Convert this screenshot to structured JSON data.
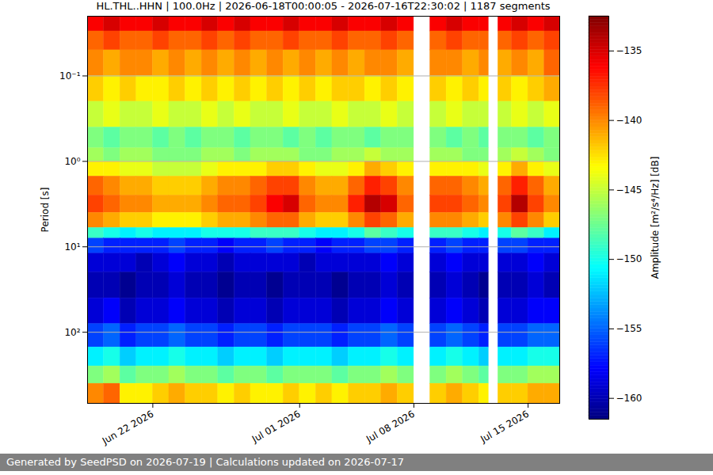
{
  "chart_data": {
    "type": "heatmap",
    "title": "HL.THL..HHN | 100.0Hz | 2026-06-18T00:00:05 - 2026-07-16T22:30:02 | 1187 segments",
    "caption": "Generated by SeedPSD on 2026-07-19 | Calculations updated on 2026-07-17",
    "xlabel": null,
    "ylabel": "Period [s]",
    "log": "y",
    "grid": true,
    "xlim": [
      "2026-06-18T00:00:05",
      "2026-07-16T22:30:02"
    ],
    "xticks": [
      {
        "value": "2026-06-22T00:00:00",
        "label": "Jun 22 2026"
      },
      {
        "value": "2026-07-01T00:00:00",
        "label": "Jul 01 2026"
      },
      {
        "value": "2026-07-08T00:00:00",
        "label": "Jul 08 2026"
      },
      {
        "value": "2026-07-15T00:00:00",
        "label": "Jul 15 2026"
      }
    ],
    "ylim": [
      0.02,
      680
    ],
    "yticks": [
      {
        "value": 0.1,
        "label": "10⁻¹"
      },
      {
        "value": 1,
        "label": "10⁰"
      },
      {
        "value": 10,
        "label": "10¹"
      },
      {
        "value": 100,
        "label": "10²"
      }
    ],
    "colorbar": {
      "label": "Amplitude [m²/s⁴/Hz] [dB]",
      "lim": [
        -161.5,
        -132.5
      ],
      "ticks": [
        {
          "value": -160,
          "label": "−160"
        },
        {
          "value": -155,
          "label": "−155"
        },
        {
          "value": -150,
          "label": "−150"
        },
        {
          "value": -145,
          "label": "−145"
        },
        {
          "value": -140,
          "label": "−140"
        },
        {
          "value": -135,
          "label": "−135"
        }
      ]
    },
    "x_edges": [
      "2026-06-18T00:00:05",
      "2026-06-19T00:00:00",
      "2026-06-20T00:00:00",
      "2026-06-21T00:00:00",
      "2026-06-22T00:00:00",
      "2026-06-23T00:00:00",
      "2026-06-24T00:00:00",
      "2026-06-25T00:00:00",
      "2026-06-26T00:00:00",
      "2026-06-27T00:00:00",
      "2026-06-28T00:00:00",
      "2026-06-29T00:00:00",
      "2026-06-30T00:00:00",
      "2026-07-01T00:00:00",
      "2026-07-02T00:00:00",
      "2026-07-03T00:00:00",
      "2026-07-04T00:00:00",
      "2026-07-05T00:00:00",
      "2026-07-06T00:00:00",
      "2026-07-07T00:00:00",
      "2026-07-08T00:00:00",
      "2026-07-09T00:00:00",
      "2026-07-10T00:00:00",
      "2026-07-11T00:00:00",
      "2026-07-12T00:00:00",
      "2026-07-12T14:00:00",
      "2026-07-13T04:00:00",
      "2026-07-14T00:00:00",
      "2026-07-15T00:00:00",
      "2026-07-16T00:00:00",
      "2026-07-16T22:30:02"
    ],
    "y_edges": [
      0.02,
      0.03,
      0.05,
      0.1,
      0.2,
      0.4,
      0.7,
      1,
      1.5,
      2.5,
      4,
      6,
      8,
      12,
      20,
      40,
      80,
      150,
      250,
      400,
      680
    ],
    "values": [
      [
        -136,
        -135,
        -136,
        -136,
        -135,
        -136,
        -136,
        -135,
        -136,
        -135,
        -136,
        -136,
        -135,
        -136,
        -136,
        -135,
        -136,
        -136,
        -135,
        -136,
        null,
        -136,
        -135,
        -136,
        -136,
        null,
        -136,
        -135,
        -136,
        -135
      ],
      [
        -139,
        -138,
        -139,
        -139,
        -138,
        -139,
        -139,
        -138,
        -139,
        -138,
        -139,
        -139,
        -138,
        -139,
        -139,
        -138,
        -139,
        -139,
        -138,
        -139,
        null,
        -139,
        -138,
        -139,
        -139,
        null,
        -139,
        -138,
        -139,
        -138
      ],
      [
        -140,
        -141,
        -140,
        -140,
        -141,
        -140,
        -141,
        -140,
        -141,
        -140,
        -141,
        -140,
        -141,
        -140,
        -141,
        -140,
        -141,
        -140,
        -140,
        -141,
        null,
        -140,
        -140,
        -141,
        -140,
        null,
        -141,
        -140,
        -141,
        -139
      ],
      [
        -142,
        -143,
        -142,
        -143,
        -143,
        -142,
        -143,
        -142,
        -143,
        -142,
        -143,
        -142,
        -143,
        -142,
        -143,
        -142,
        -142,
        -143,
        -142,
        -143,
        null,
        -142,
        -143,
        -142,
        -143,
        null,
        -142,
        -143,
        -142,
        -141
      ],
      [
        -145,
        -144,
        -145,
        -145,
        -144,
        -145,
        -145,
        -144,
        -145,
        -144,
        -145,
        -145,
        -144,
        -145,
        -145,
        -144,
        -145,
        -145,
        -144,
        -145,
        null,
        -145,
        -144,
        -145,
        -145,
        null,
        -145,
        -144,
        -145,
        -144
      ],
      [
        -147,
        -148,
        -147,
        -147,
        -148,
        -147,
        -148,
        -147,
        -147,
        -148,
        -147,
        -147,
        -148,
        -147,
        -148,
        -147,
        -147,
        -148,
        -147,
        -147,
        null,
        -147,
        -148,
        -147,
        -148,
        null,
        -147,
        -147,
        -148,
        -147
      ],
      [
        -146,
        -147,
        -146,
        -146,
        -147,
        -147,
        -147,
        -146,
        -146,
        -147,
        -146,
        -146,
        -146,
        -147,
        -147,
        -146,
        -146,
        -145,
        -146,
        -146,
        null,
        -146,
        -146,
        -147,
        -147,
        null,
        -146,
        -145,
        -146,
        -147
      ],
      [
        -143,
        -143,
        -144,
        -144,
        -145,
        -145,
        -145,
        -144,
        -143,
        -143,
        -143,
        -142,
        -142,
        -143,
        -144,
        -144,
        -143,
        -141,
        -142,
        -143,
        null,
        -143,
        -143,
        -143,
        -144,
        null,
        -143,
        -141,
        -143,
        -144
      ],
      [
        -139,
        -140,
        -141,
        -141,
        -142,
        -142,
        -142,
        -141,
        -140,
        -140,
        -139,
        -138,
        -138,
        -140,
        -141,
        -141,
        -139,
        -137,
        -138,
        -140,
        null,
        -139,
        -139,
        -140,
        -141,
        null,
        -139,
        -137,
        -139,
        -141
      ],
      [
        -138,
        -139,
        -140,
        -140,
        -141,
        -141,
        -141,
        -140,
        -139,
        -139,
        -138,
        -136,
        -135,
        -139,
        -140,
        -140,
        -137,
        -134,
        -135,
        -139,
        null,
        -138,
        -138,
        -139,
        -140,
        null,
        -138,
        -134,
        -138,
        -140
      ],
      [
        -140,
        -141,
        -142,
        -142,
        -143,
        -143,
        -143,
        -142,
        -141,
        -141,
        -140,
        -139,
        -139,
        -141,
        -142,
        -142,
        -140,
        -138,
        -139,
        -141,
        null,
        -140,
        -140,
        -141,
        -142,
        null,
        -140,
        -138,
        -140,
        -142
      ],
      [
        -149,
        -150,
        -151,
        -150,
        -151,
        -151,
        -151,
        -150,
        -150,
        -150,
        -149,
        -149,
        -149,
        -150,
        -151,
        -151,
        -150,
        -148,
        -149,
        -150,
        null,
        -149,
        -149,
        -150,
        -151,
        null,
        -150,
        -148,
        -149,
        -151
      ],
      [
        -156,
        -157,
        -157,
        -157,
        -157,
        -156,
        -157,
        -157,
        -158,
        -157,
        -157,
        -156,
        -157,
        -157,
        -158,
        -157,
        -157,
        -156,
        -156,
        -157,
        null,
        -157,
        -156,
        -157,
        -157,
        null,
        -156,
        -156,
        -157,
        -157
      ],
      [
        -159,
        -159,
        -159,
        -160,
        -159,
        -158,
        -159,
        -159,
        -160,
        -159,
        -159,
        -159,
        -159,
        -160,
        -159,
        -159,
        -159,
        -159,
        -158,
        -159,
        null,
        -159,
        -158,
        -159,
        -159,
        null,
        -159,
        -159,
        -158,
        -159
      ],
      [
        -160,
        -160,
        -161,
        -160,
        -160,
        -159,
        -160,
        -160,
        -161,
        -160,
        -160,
        -161,
        -160,
        -160,
        -160,
        -161,
        -160,
        -160,
        -159,
        -160,
        null,
        -160,
        -159,
        -160,
        -161,
        null,
        -160,
        -160,
        -159,
        -160
      ],
      [
        -159,
        -158,
        -160,
        -159,
        -159,
        -158,
        -159,
        -159,
        -160,
        -159,
        -159,
        -160,
        -159,
        -159,
        -159,
        -160,
        -159,
        -159,
        -158,
        -159,
        null,
        -159,
        -158,
        -159,
        -160,
        null,
        -159,
        -159,
        -158,
        -158
      ],
      [
        -156,
        -155,
        -157,
        -156,
        -156,
        -155,
        -156,
        -156,
        -157,
        -156,
        -156,
        -157,
        -156,
        -156,
        -156,
        -157,
        -156,
        -156,
        -155,
        -156,
        null,
        -156,
        -155,
        -156,
        -157,
        null,
        -156,
        -156,
        -155,
        -155
      ],
      [
        -151,
        -150,
        -152,
        -151,
        -151,
        -150,
        -151,
        -151,
        -152,
        -151,
        -151,
        -152,
        -151,
        -151,
        -151,
        -152,
        -151,
        -151,
        -150,
        -151,
        null,
        -151,
        -150,
        -151,
        -152,
        null,
        -151,
        -151,
        -150,
        -150
      ],
      [
        -147,
        -146,
        -148,
        -147,
        -147,
        -146,
        -147,
        -147,
        -148,
        -147,
        -147,
        -148,
        -147,
        -147,
        -147,
        -148,
        -147,
        -147,
        -146,
        -147,
        null,
        -147,
        -146,
        -147,
        -148,
        null,
        -147,
        -147,
        -146,
        -146
      ],
      [
        -140,
        -139,
        -143,
        -143,
        -142,
        -141,
        -142,
        -142,
        -143,
        -142,
        -143,
        -143,
        -142,
        -143,
        -142,
        -143,
        -142,
        -142,
        -141,
        -142,
        null,
        -142,
        -141,
        -142,
        -143,
        null,
        -142,
        -142,
        -141,
        -141
      ]
    ]
  }
}
